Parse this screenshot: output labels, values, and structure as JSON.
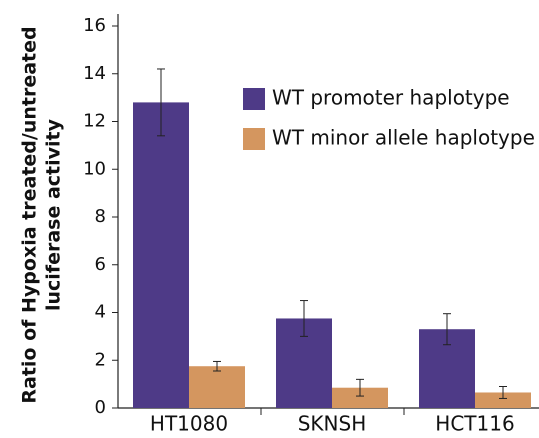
{
  "chart_data": {
    "type": "bar",
    "y_label": [
      "Ratio of Hypoxia treated/untreated",
      "luciferase activity"
    ],
    "categories": [
      "HT1080",
      "SKNSH",
      "HCT116"
    ],
    "series": [
      {
        "name": "WT promoter haplotype",
        "color": "#4e3a87",
        "values": [
          12.8,
          3.75,
          3.3
        ],
        "errors": [
          1.4,
          0.75,
          0.65
        ]
      },
      {
        "name": "WT minor allele haplotype",
        "color": "#d4965f",
        "values": [
          1.75,
          0.85,
          0.65
        ],
        "errors": [
          0.2,
          0.35,
          0.25
        ]
      }
    ],
    "ylim": [
      0,
      16
    ],
    "yticks": [
      0,
      2,
      4,
      6,
      8,
      10,
      12,
      14,
      16
    ]
  }
}
